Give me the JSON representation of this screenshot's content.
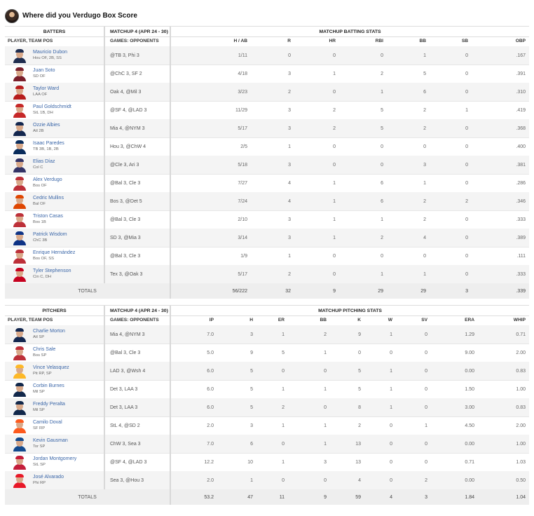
{
  "page": {
    "title": "Where did you Verdugo Box Score"
  },
  "batters": {
    "section_header": {
      "left": "BATTERS",
      "matchup": "MATCHUP 4 (APR 24 - 30)",
      "stats": "MATCHUP BATTING STATS"
    },
    "columns": {
      "player": "PLAYER, TEAM POS",
      "opponents": "GAMES: OPPONENTS",
      "stats": [
        "H / AB",
        "R",
        "HR",
        "RBI",
        "BB",
        "SB",
        "OBP"
      ]
    },
    "rows": [
      {
        "name": "Mauricio Dubon",
        "team": "Hou  OF, 2B, SS",
        "opp": "@TB 3, Phi 3",
        "stats": [
          "1/11",
          "0",
          "0",
          "0",
          "1",
          "0",
          ".167"
        ]
      },
      {
        "name": "Juan Soto",
        "team": "SD  OF",
        "opp": "@ChC 3, SF 2",
        "stats": [
          "4/18",
          "3",
          "1",
          "2",
          "5",
          "0",
          ".391"
        ]
      },
      {
        "name": "Taylor Ward",
        "team": "LAA  OF",
        "opp": "Oak 4, @Mil 3",
        "stats": [
          "3/23",
          "2",
          "0",
          "1",
          "6",
          "0",
          ".310"
        ]
      },
      {
        "name": "Paul Goldschmidt",
        "team": "StL  1B, DH",
        "opp": "@SF 4, @LAD 3",
        "stats": [
          "11/29",
          "3",
          "2",
          "5",
          "2",
          "1",
          ".419"
        ]
      },
      {
        "name": "Ozzie Albies",
        "team": "Atl  2B",
        "opp": "Mia 4, @NYM 3",
        "stats": [
          "5/17",
          "3",
          "2",
          "5",
          "2",
          "0",
          ".368"
        ]
      },
      {
        "name": "Isaac Paredes",
        "team": "TB  3B, 1B, 2B",
        "opp": "Hou 3, @ChW 4",
        "stats": [
          "2/5",
          "1",
          "0",
          "0",
          "0",
          "0",
          ".400"
        ]
      },
      {
        "name": "Elias Díaz",
        "team": "Col  C",
        "opp": "@Cle 3, Ari 3",
        "stats": [
          "5/18",
          "3",
          "0",
          "0",
          "3",
          "0",
          ".381"
        ]
      },
      {
        "name": "Alex Verdugo",
        "team": "Bos  OF",
        "opp": "@Bal 3, Cle 3",
        "stats": [
          "7/27",
          "4",
          "1",
          "6",
          "1",
          "0",
          ".286"
        ]
      },
      {
        "name": "Cedric Mullins",
        "team": "Bal  OF",
        "opp": "Bos 3, @Det 5",
        "stats": [
          "7/24",
          "4",
          "1",
          "6",
          "2",
          "2",
          ".346"
        ]
      },
      {
        "name": "Triston Casas",
        "team": "Bos  1B",
        "opp": "@Bal 3, Cle 3",
        "stats": [
          "2/10",
          "3",
          "1",
          "1",
          "2",
          "0",
          ".333"
        ]
      },
      {
        "name": "Patrick Wisdom",
        "team": "ChC  3B",
        "opp": "SD 3, @Mia 3",
        "stats": [
          "3/14",
          "3",
          "1",
          "2",
          "4",
          "0",
          ".389"
        ]
      },
      {
        "name": "Enrique Hernández",
        "team": "Bos  OF, SS",
        "opp": "@Bal 3, Cle 3",
        "stats": [
          "1/9",
          "1",
          "0",
          "0",
          "0",
          "0",
          ".111"
        ]
      },
      {
        "name": "Tyler Stephenson",
        "team": "Cin  C, DH",
        "opp": "Tex 3, @Oak 3",
        "stats": [
          "5/17",
          "2",
          "0",
          "1",
          "1",
          "0",
          ".333"
        ]
      }
    ],
    "totals": {
      "label": "TOTALS",
      "stats": [
        "56/222",
        "32",
        "9",
        "29",
        "29",
        "3",
        ".339"
      ]
    }
  },
  "pitchers": {
    "section_header": {
      "left": "PITCHERS",
      "matchup": "MATCHUP 4 (APR 24 - 30)",
      "stats": "MATCHUP PITCHING STATS"
    },
    "columns": {
      "player": "PLAYER, TEAM POS",
      "opponents": "GAMES: OPPONENTS",
      "stats": [
        "IP",
        "H",
        "ER",
        "BB",
        "K",
        "W",
        "SV",
        "ERA",
        "WHIP"
      ]
    },
    "rows": [
      {
        "name": "Charlie Morton",
        "team": "Atl  SP",
        "opp": "Mia 4, @NYM 3",
        "stats": [
          "7.0",
          "3",
          "1",
          "2",
          "9",
          "1",
          "0",
          "1.29",
          "0.71"
        ]
      },
      {
        "name": "Chris Sale",
        "team": "Bos  SP",
        "opp": "@Bal 3, Cle 3",
        "stats": [
          "5.0",
          "9",
          "5",
          "1",
          "0",
          "0",
          "0",
          "9.00",
          "2.00"
        ]
      },
      {
        "name": "Vince Velasquez",
        "team": "Pit  RP, SP",
        "opp": "LAD 3, @Wsh 4",
        "stats": [
          "6.0",
          "5",
          "0",
          "0",
          "5",
          "1",
          "0",
          "0.00",
          "0.83"
        ]
      },
      {
        "name": "Corbin Burnes",
        "team": "Mil  SP",
        "opp": "Det 3, LAA 3",
        "stats": [
          "6.0",
          "5",
          "1",
          "1",
          "5",
          "1",
          "0",
          "1.50",
          "1.00"
        ]
      },
      {
        "name": "Freddy Peralta",
        "team": "Mil  SP",
        "opp": "Det 3, LAA 3",
        "stats": [
          "6.0",
          "5",
          "2",
          "0",
          "8",
          "1",
          "0",
          "3.00",
          "0.83"
        ]
      },
      {
        "name": "Camilo Doval",
        "team": "SF  RP",
        "opp": "StL 4, @SD 2",
        "stats": [
          "2.0",
          "3",
          "1",
          "1",
          "2",
          "0",
          "1",
          "4.50",
          "2.00"
        ]
      },
      {
        "name": "Kevin Gausman",
        "team": "Tor  SP",
        "opp": "ChW 3, Sea 3",
        "stats": [
          "7.0",
          "6",
          "0",
          "1",
          "13",
          "0",
          "0",
          "0.00",
          "1.00"
        ]
      },
      {
        "name": "Jordan Montgomery",
        "team": "StL  SP",
        "opp": "@SF 4, @LAD 3",
        "stats": [
          "12.2",
          "10",
          "1",
          "3",
          "13",
          "0",
          "0",
          "0.71",
          "1.03"
        ]
      },
      {
        "name": "José Alvarado",
        "team": "Phi  RP",
        "opp": "Sea 3, @Hou 3",
        "stats": [
          "2.0",
          "1",
          "0",
          "0",
          "4",
          "0",
          "2",
          "0.00",
          "0.50"
        ]
      }
    ],
    "totals": {
      "label": "TOTALS",
      "stats": [
        "53.2",
        "47",
        "11",
        "9",
        "59",
        "4",
        "3",
        "1.84",
        "1.04"
      ]
    }
  },
  "colors": {
    "link": "#3a66a8",
    "caps": [
      "#1f2d4f",
      "#7a1f2b",
      "#b71c1c",
      "#c62828",
      "#13274f",
      "#092c5c",
      "#333366",
      "#bd3039",
      "#df4601",
      "#bd3039",
      "#0e3386",
      "#bd3039",
      "#c6011f"
    ],
    "pcaps": [
      "#13274f",
      "#bd3039",
      "#fdb827",
      "#12284b",
      "#12284b",
      "#fd5a1e",
      "#134a8e",
      "#c41e3a",
      "#e81828"
    ]
  }
}
